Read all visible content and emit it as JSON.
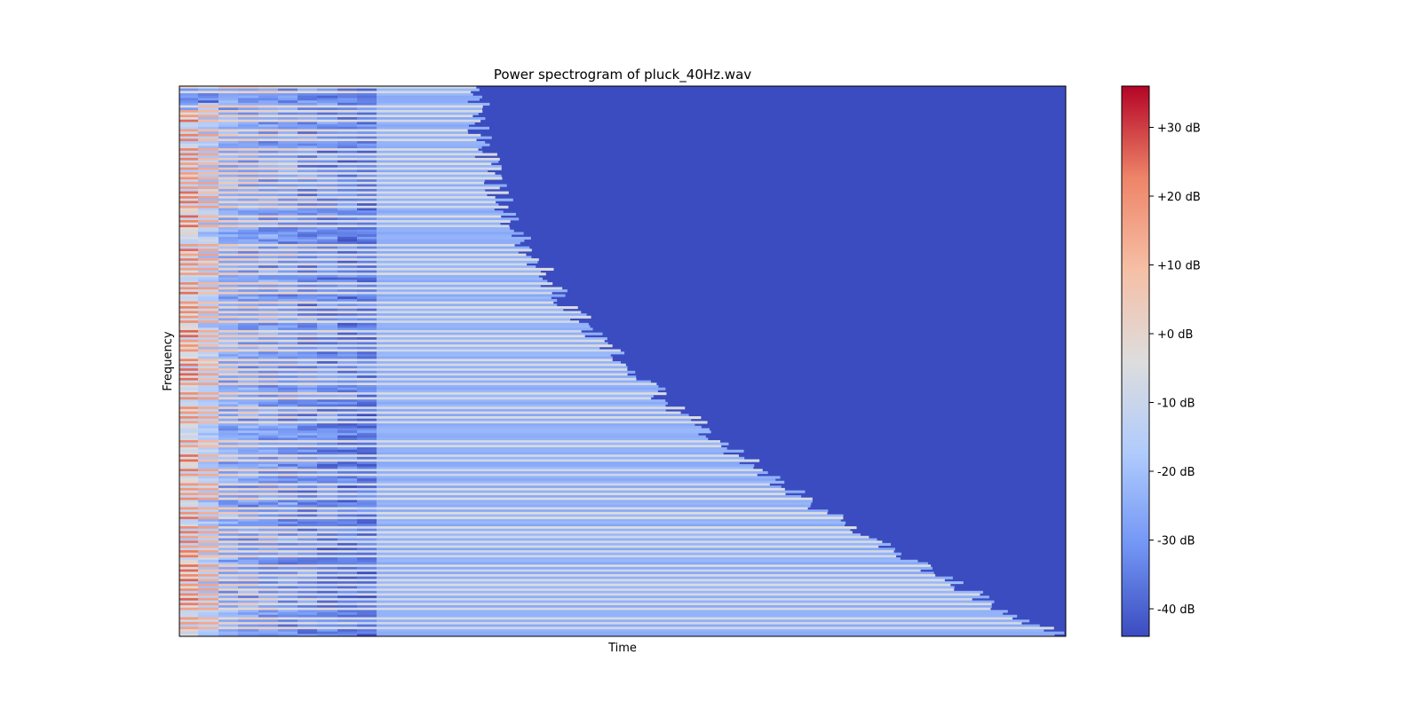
{
  "chart_data": {
    "type": "heatmap",
    "title": "Power spectrogram of pluck_40Hz.wav",
    "xlabel": "Time",
    "ylabel": "Frequency",
    "x_ticks": [],
    "y_ticks": [],
    "colormap": "coolwarm",
    "colormap_stops": [
      "#3b4cc0",
      "#7396f5",
      "#b0cbfc",
      "#dddddd",
      "#f6bfa6",
      "#ee8468",
      "#b40426"
    ],
    "background_color": "#3b4cc0",
    "colorbar": {
      "range": [
        -44,
        36
      ],
      "unit": "dB",
      "tick_values": [
        30,
        20,
        10,
        0,
        -10,
        -20,
        -30,
        -40
      ],
      "tick_labels": [
        "+30 dB",
        "+20 dB",
        "+10 dB",
        "+0 dB",
        "-10 dB",
        "-20 dB",
        "-30 dB",
        "-40 dB"
      ]
    },
    "grid": false
  }
}
